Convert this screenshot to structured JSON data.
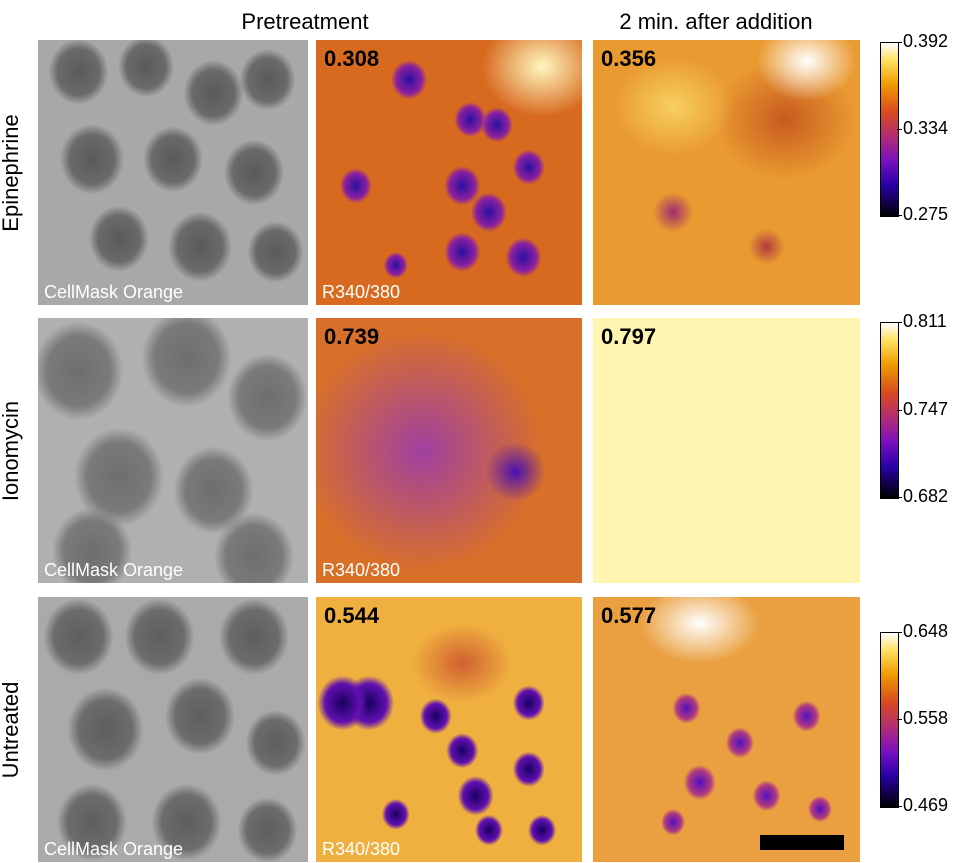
{
  "columns": [
    "Pretreatment",
    "2 min. after addition"
  ],
  "rows": [
    {
      "label": "Epinephrine",
      "grayscale_label": "CellMask Orange",
      "ratio_label": "R340/380",
      "pretreatment_value": "0.308",
      "after_value": "0.356",
      "colorbar": [
        "0.392",
        "0.334",
        "0.275"
      ]
    },
    {
      "label": "Ionomycin",
      "grayscale_label": "CellMask Orange",
      "ratio_label": "R340/380",
      "pretreatment_value": "0.739",
      "after_value": "0.797",
      "colorbar": [
        "0.811",
        "0.747",
        "0.682"
      ]
    },
    {
      "label": "Untreated",
      "grayscale_label": "CellMask Orange",
      "ratio_label": "R340/380",
      "pretreatment_value": "0.544",
      "after_value": "0.577",
      "colorbar": [
        "0.648",
        "0.558",
        "0.469"
      ]
    }
  ]
}
